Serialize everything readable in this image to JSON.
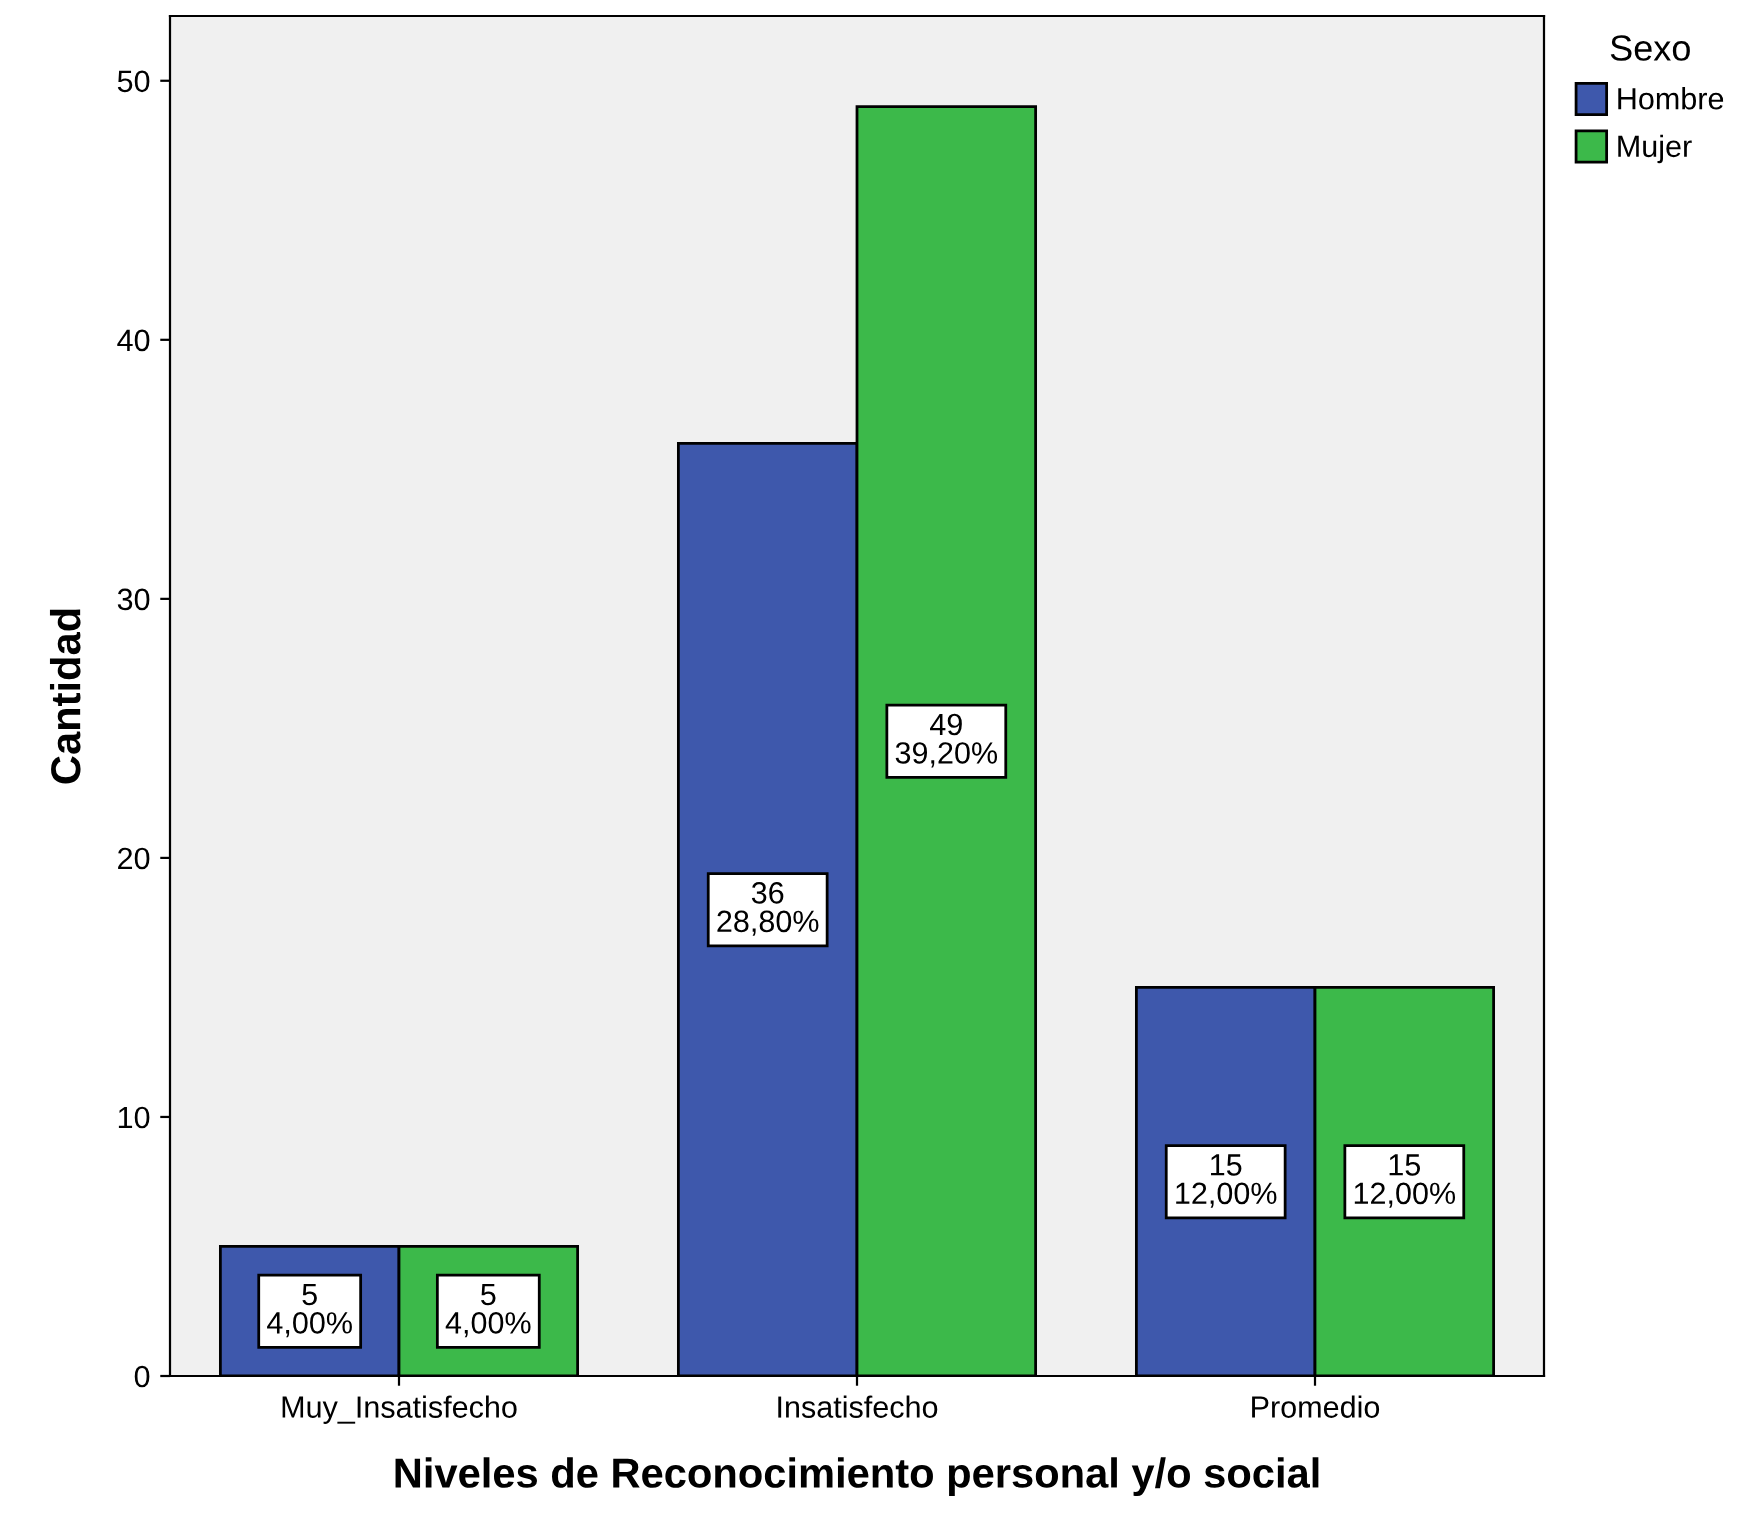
{
  "chart_data": {
    "type": "bar",
    "xlabel": "Niveles de Reconocimiento personal y/o social",
    "ylabel": "Cantidad",
    "legend_title": "Sexo",
    "categories": [
      "Muy_Insatisfecho",
      "Insatisfecho",
      "Promedio"
    ],
    "series": [
      {
        "name": "Hombre",
        "color": "#3e58ac",
        "values": [
          5,
          36,
          15
        ],
        "value_labels": [
          "5\n4,00%",
          "36\n28,80%",
          "15\n12,00%"
        ]
      },
      {
        "name": "Mujer",
        "color": "#3cb94a",
        "values": [
          5,
          49,
          15
        ],
        "value_labels": [
          "5\n4,00%",
          "49\n39,20%",
          "15\n12,00%"
        ]
      }
    ],
    "ylim": [
      0,
      52.5
    ],
    "yticks": [
      0,
      10,
      20,
      30,
      40,
      50
    ],
    "grid": false,
    "legend": "top right"
  }
}
